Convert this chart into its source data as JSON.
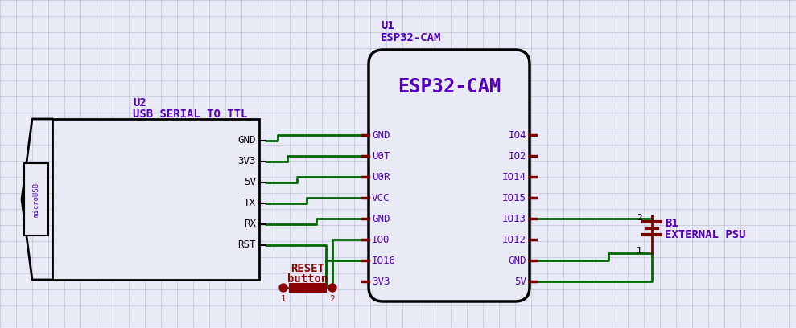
{
  "bg_color": "#e8eaf6",
  "grid_color": "#c0c4d8",
  "wire_color": "#006600",
  "pin_color": "#7B0000",
  "comp_color": "#000000",
  "label_color": "#5500bb",
  "reset_color": "#8B0000",
  "microusb_text": "microUSB",
  "u2_pins": [
    "GND",
    "3V3",
    "5V",
    "TX",
    "RX",
    "RST"
  ],
  "u1_pins_left": [
    "GND",
    "U0T",
    "U0R",
    "VCC",
    "GND",
    "IO0",
    "IO16",
    "3V3"
  ],
  "u1_pins_right": [
    "IO4",
    "IO2",
    "IO14",
    "IO15",
    "IO13",
    "IO12",
    "GND",
    "5V"
  ]
}
